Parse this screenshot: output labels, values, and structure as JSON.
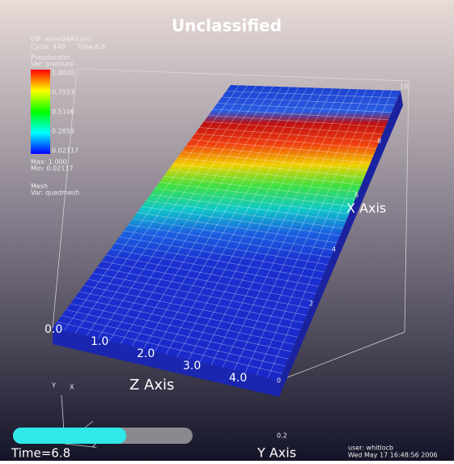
{
  "header": {
    "title": "Unclassified"
  },
  "database": {
    "db": "DB: wave0440.silo",
    "cycle": "Cycle: 440",
    "time": "Time:6.8"
  },
  "legend": {
    "plot": "Pseudocolor",
    "variable": "Var: pressure",
    "ticks": [
      "1.0000",
      "0.7553",
      "0.5106",
      "0.2659",
      "0.02117"
    ],
    "max": "Max: 1.000",
    "min": "Min: 0.02117"
  },
  "mesh": {
    "plot": "Mesh",
    "variable": "Var: quadmesh"
  },
  "axes": {
    "x_label": "X Axis",
    "y_label": "Y Axis",
    "z_label": "Z Axis",
    "x_ticks": [
      "2",
      "4",
      "6",
      "8",
      "10"
    ],
    "z_ticks": [
      "0.0",
      "1.0",
      "2.0",
      "3.0",
      "4.0"
    ],
    "y_ticks": [
      "0",
      "0.2"
    ]
  },
  "triad": {
    "y": "Y",
    "x": "X",
    "z": "Z"
  },
  "time_label": "Time=6.8",
  "user_info": {
    "user": "user: whitlocb",
    "date": "Wed May 17 16:48:56 2006"
  }
}
